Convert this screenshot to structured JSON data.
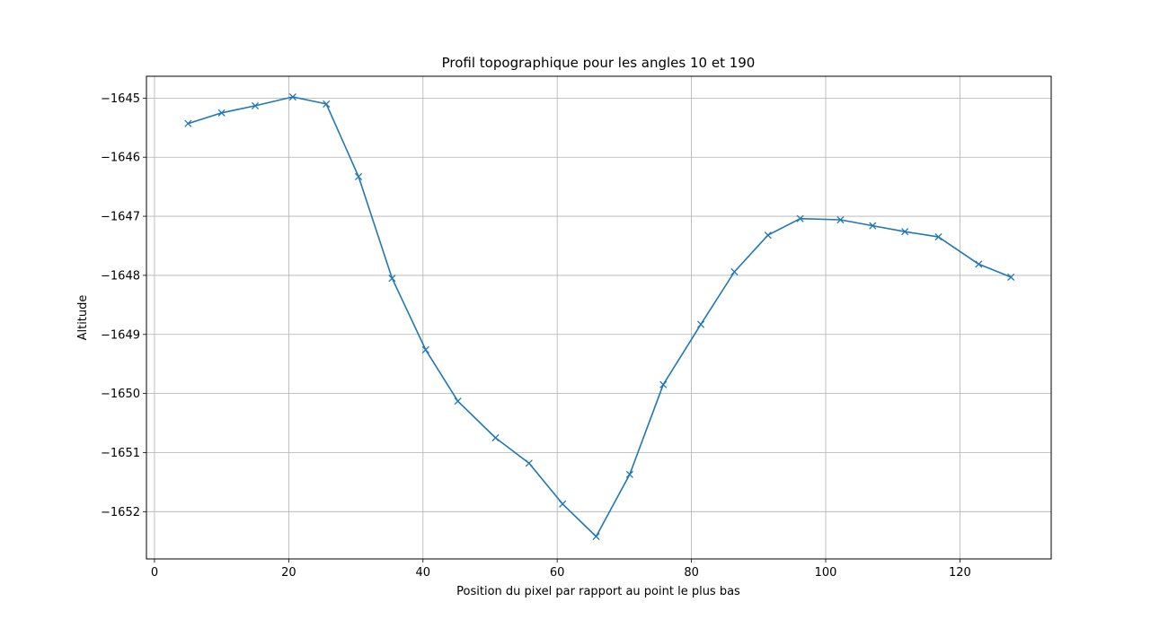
{
  "chart_data": {
    "type": "line",
    "title": "Profil topographique pour les angles 10 et 190",
    "xlabel": "Position du pixel par rapport au point le plus bas",
    "ylabel": "Altitude",
    "xlim": [
      -1.2,
      133.6
    ],
    "ylim": [
      -1652.8,
      -1644.63
    ],
    "xticks": [
      0,
      20,
      40,
      60,
      80,
      100,
      120
    ],
    "yticks": [
      -1645,
      -1646,
      -1647,
      -1648,
      -1649,
      -1650,
      -1651,
      -1652
    ],
    "xtick_labels": [
      "0",
      "20",
      "40",
      "60",
      "80",
      "100",
      "120"
    ],
    "ytick_labels": [
      "−1645",
      "−1646",
      "−1647",
      "−1648",
      "−1649",
      "−1650",
      "−1651",
      "−1652"
    ],
    "grid": true,
    "marker": "x",
    "color": "#1f77b4",
    "series": [
      {
        "x": [
          5,
          10,
          15,
          20.6,
          25.6,
          30.4,
          35.4,
          40.4,
          45.2,
          50.8,
          55.8,
          60.8,
          65.8,
          70.8,
          75.8,
          81.4,
          86.4,
          91.4,
          96.2,
          102.2,
          107,
          111.8,
          116.8,
          122.8,
          127.6
        ],
        "y": [
          -1645.43,
          -1645.25,
          -1645.13,
          -1644.98,
          -1645.1,
          -1646.33,
          -1648.05,
          -1649.26,
          -1650.13,
          -1650.75,
          -1651.18,
          -1651.87,
          -1652.42,
          -1651.37,
          -1649.85,
          -1648.83,
          -1647.94,
          -1647.32,
          -1647.04,
          -1647.06,
          -1647.16,
          -1647.26,
          -1647.35,
          -1647.81,
          -1648.03
        ]
      }
    ]
  }
}
